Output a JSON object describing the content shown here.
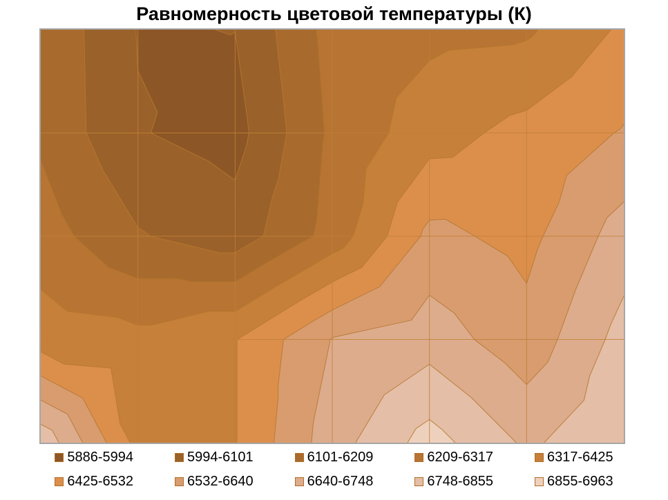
{
  "title": "Равномерность цветовой температуры (К)",
  "colors": {
    "background": "#ffffff",
    "title_text": "#000000",
    "legend_text": "#000000",
    "plot_border": "#a6a6a6",
    "contour_line": "#b5772e",
    "gridline": "#c08037",
    "swatch_border": "#b06c28"
  },
  "chart_data": {
    "type": "heatmap",
    "subtype": "contour-surface",
    "title": "Равномерность цветовой температуры (К)",
    "xlabel": "",
    "ylabel": "",
    "legend_position": "bottom",
    "grid_on": true,
    "value_unit": "K",
    "value_range": [
      5886,
      6963
    ],
    "levels": [
      5886,
      5994,
      6101,
      6209,
      6317,
      6425,
      6532,
      6640,
      6748,
      6855,
      6963
    ],
    "bands": [
      {
        "label": "5886-5994",
        "color": "#8D5626"
      },
      {
        "label": "5994-6101",
        "color": "#9A612A"
      },
      {
        "label": "6101-6209",
        "color": "#A96B2D"
      },
      {
        "label": "6209-6317",
        "color": "#B77432"
      },
      {
        "label": "6317-6425",
        "color": "#C6803A"
      },
      {
        "label": "6425-6532",
        "color": "#DC8F4B"
      },
      {
        "label": "6532-6640",
        "color": "#D89C6F"
      },
      {
        "label": "6640-6748",
        "color": "#DDAC8D"
      },
      {
        "label": "6748-6855",
        "color": "#E4BEA6"
      },
      {
        "label": "6855-6963",
        "color": "#EED1BD"
      }
    ],
    "grid": {
      "cols": 7,
      "rows": 5,
      "values": [
        [
          6190,
          5990,
          5995,
          6250,
          6290,
          6300,
          6444
        ],
        [
          6190,
          6000,
          5955,
          6230,
          6380,
          6460,
          6540
        ],
        [
          6260,
          6110,
          6040,
          6250,
          6560,
          6500,
          6690
        ],
        [
          6370,
          6350,
          6420,
          6645,
          6700,
          6570,
          6790
        ],
        [
          6830,
          6390,
          6420,
          6700,
          6900,
          6730,
          6830
        ]
      ]
    }
  }
}
